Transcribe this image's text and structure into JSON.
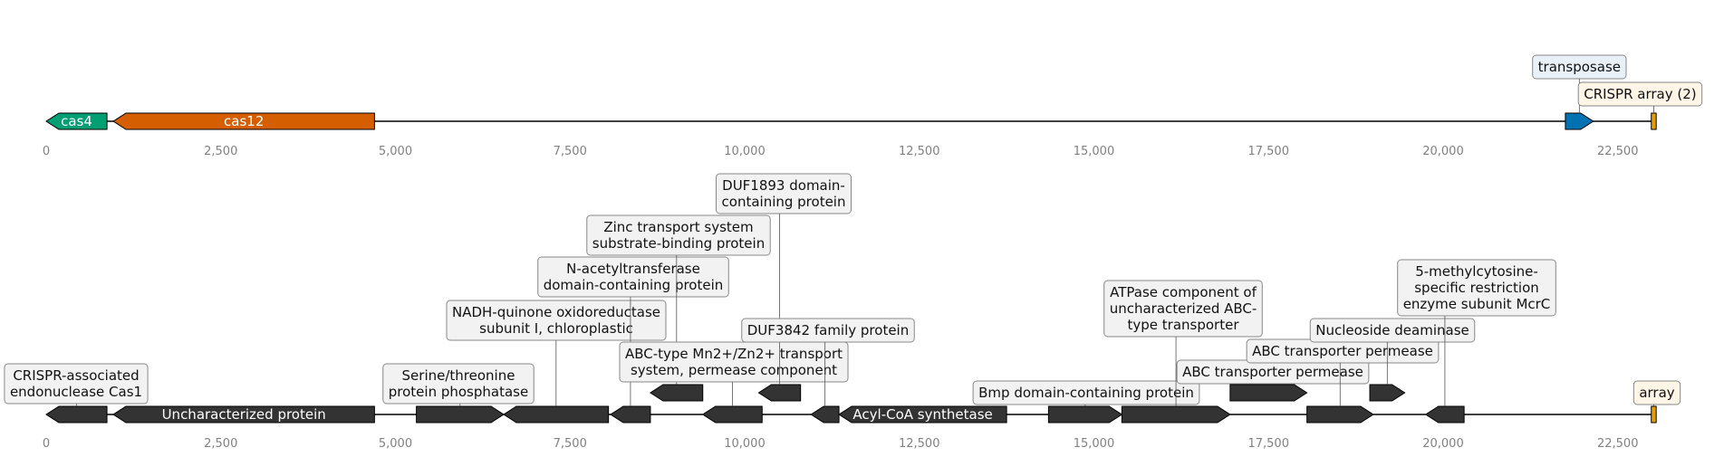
{
  "colors": {
    "cas4": "#009e73",
    "cas12": "#d55e00",
    "transposase": "#0072b2",
    "crispr_array": "#e69f00",
    "generic_gene": "#333333",
    "label_box_fill": "#f2f2f2",
    "transposase_box_fill": "#e8f1f8",
    "array_box_fill": "#fdf5e6",
    "axis_text": "#808080"
  },
  "x_axis": {
    "min": 0,
    "max": 23100,
    "tick_values": [
      0,
      2500,
      5000,
      7500,
      10000,
      12500,
      15000,
      17500,
      20000,
      22500
    ],
    "tick_labels": [
      "0",
      "2,500",
      "5,000",
      "7,500",
      "10,000",
      "12,500",
      "15,000",
      "17,500",
      "20,000",
      "22,500"
    ]
  },
  "top_track": {
    "features": [
      {
        "name": "cas4",
        "start": 0,
        "end": 870,
        "strand": -1,
        "color": "#009e73",
        "label_inside": "cas4"
      },
      {
        "name": "cas12",
        "start": 960,
        "end": 4700,
        "strand": -1,
        "color": "#d55e00",
        "label_inside": "cas12"
      },
      {
        "name": "transposase",
        "start": 21750,
        "end": 22150,
        "strand": 1,
        "color": "#0072b2",
        "label": "transposase",
        "label_level": 2
      },
      {
        "name": "CRISPR array (2)",
        "start": 22980,
        "end": 23050,
        "strand": 0,
        "color": "#e69f00",
        "label": "CRISPR array (2)",
        "label_level": 1
      }
    ]
  },
  "bottom_track": {
    "features": [
      {
        "start": 0,
        "end": 870,
        "strand": -1,
        "label": "CRISPR-associated\nendonuclease Cas1",
        "label_level": 1
      },
      {
        "start": 960,
        "end": 4700,
        "strand": -1,
        "label_inside": "Uncharacterized protein"
      },
      {
        "start": 5300,
        "end": 6550,
        "strand": 1,
        "label": "Serine/threonine\nprotein phosphatase",
        "label_level": 1
      },
      {
        "start": 6550,
        "end": 8050,
        "strand": -1,
        "label": "NADH-quinone oxidoreductase\nsubunit I, chloroplastic",
        "label_level": 3
      },
      {
        "start": 8080,
        "end": 8650,
        "strand": -1,
        "label": "N-acetyltransferase\ndomain-containing protein",
        "label_level": 4
      },
      {
        "start": 8650,
        "end": 9400,
        "strand": -1,
        "row": 1,
        "label": "Zinc transport system\nsubstrate-binding protein",
        "label_level": 5
      },
      {
        "start": 9400,
        "end": 10250,
        "strand": -1,
        "label": "ABC-type Mn2+/Zn2+ transport\nsystem, permease component",
        "label_level": 2
      },
      {
        "start": 10200,
        "end": 10800,
        "strand": -1,
        "row": 1,
        "label": "DUF1893 domain-\ncontaining protein",
        "label_level": 6
      },
      {
        "start": 10950,
        "end": 11350,
        "strand": -1,
        "label": "DUF3842 family protein",
        "label_level": 3
      },
      {
        "start": 11350,
        "end": 13750,
        "strand": -1,
        "label_inside": "Acyl-Coenzyme synthetase"
      },
      {
        "start": 14350,
        "end": 15400,
        "strand": 1,
        "label": "Bmp domain-containing protein",
        "label_level": 1
      },
      {
        "start": 15400,
        "end": 16950,
        "strand": 1,
        "label": "ATPase component of\nuncharacterized ABC-\ntype transporter",
        "label_level": 3
      },
      {
        "start": 16950,
        "end": 18050,
        "strand": 1,
        "row": 1,
        "label": "ABC transporter permease",
        "label_level": 2
      },
      {
        "start": 18050,
        "end": 19000,
        "strand": 1,
        "label": "ABC transporter permease",
        "label_level": 3
      },
      {
        "start": 18950,
        "end": 19450,
        "strand": 1,
        "row": 1,
        "label": "Nucleoside deaminase",
        "label_level": 4
      },
      {
        "start": 19750,
        "end": 20300,
        "strand": -1,
        "label": "5-methylcytosine-\nspecific restriction\nenzyme subunit McrC",
        "label_level": 5
      },
      {
        "start": 22980,
        "end": 23050,
        "strand": 0,
        "label": "array",
        "label_level": 1,
        "color": "#e69f00"
      }
    ]
  }
}
